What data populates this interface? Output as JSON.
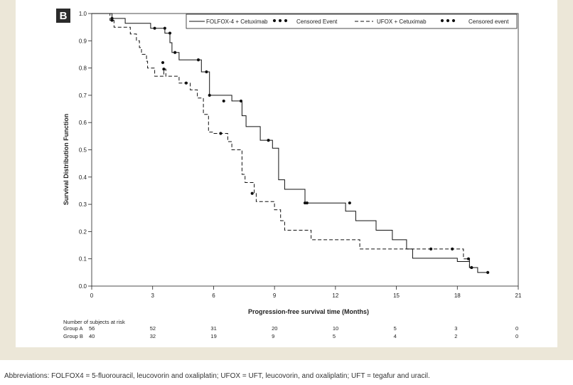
{
  "panel_label": "B",
  "chart_data": {
    "type": "line",
    "xlabel": "Progression-free survival time (Months)",
    "ylabel": "Survival Distribution Function",
    "xlim": [
      0,
      21
    ],
    "ylim": [
      0,
      1.0
    ],
    "xticks": [
      0,
      3,
      6,
      9,
      12,
      15,
      18,
      21
    ],
    "yticks": [
      0.0,
      0.1,
      0.2,
      0.3,
      0.4,
      0.5,
      0.6,
      0.7,
      0.8,
      0.9,
      1.0
    ],
    "ytick_labels": [
      "0.0",
      "0.1",
      "0.2",
      "0.3",
      "0.4",
      "0.5",
      "0.6",
      "0.7",
      "0.8",
      "0.9",
      "1.0"
    ],
    "legend_position": "top-right",
    "legend": [
      {
        "label": "FOLFOX-4 + Cetuximab",
        "style": "solid"
      },
      {
        "label": "Censored Event",
        "style": "dots"
      },
      {
        "label": "UFOX + Cetuximab",
        "style": "dashed"
      },
      {
        "label": "Censored event",
        "style": "dots"
      }
    ],
    "series": [
      {
        "style": "solid",
        "steps": [
          [
            0,
            1.0
          ],
          [
            1.0,
            1.0
          ],
          [
            1.0,
            0.982
          ],
          [
            1.65,
            0.982
          ],
          [
            1.65,
            0.964
          ],
          [
            2.9,
            0.964
          ],
          [
            2.9,
            0.946
          ],
          [
            3.6,
            0.946
          ],
          [
            3.6,
            0.928
          ],
          [
            3.85,
            0.928
          ],
          [
            3.85,
            0.893
          ],
          [
            3.95,
            0.893
          ],
          [
            3.95,
            0.857
          ],
          [
            4.3,
            0.857
          ],
          [
            4.3,
            0.83
          ],
          [
            5.4,
            0.83
          ],
          [
            5.4,
            0.786
          ],
          [
            5.8,
            0.786
          ],
          [
            5.8,
            0.7
          ],
          [
            6.9,
            0.7
          ],
          [
            6.9,
            0.679
          ],
          [
            7.4,
            0.679
          ],
          [
            7.4,
            0.625
          ],
          [
            7.6,
            0.625
          ],
          [
            7.6,
            0.585
          ],
          [
            8.3,
            0.585
          ],
          [
            8.3,
            0.535
          ],
          [
            8.9,
            0.535
          ],
          [
            8.9,
            0.506
          ],
          [
            9.2,
            0.506
          ],
          [
            9.2,
            0.39
          ],
          [
            9.5,
            0.39
          ],
          [
            9.5,
            0.355
          ],
          [
            10.5,
            0.355
          ],
          [
            10.5,
            0.305
          ],
          [
            12.5,
            0.305
          ],
          [
            12.5,
            0.275
          ],
          [
            13.0,
            0.275
          ],
          [
            13.0,
            0.24
          ],
          [
            14.0,
            0.24
          ],
          [
            14.0,
            0.205
          ],
          [
            14.8,
            0.205
          ],
          [
            14.8,
            0.17
          ],
          [
            15.5,
            0.17
          ],
          [
            15.5,
            0.136
          ],
          [
            15.8,
            0.136
          ],
          [
            15.8,
            0.102
          ],
          [
            18.0,
            0.102
          ],
          [
            18.0,
            0.09
          ],
          [
            18.6,
            0.09
          ],
          [
            18.6,
            0.068
          ],
          [
            19.0,
            0.068
          ],
          [
            19.0,
            0.05
          ],
          [
            19.5,
            0.05
          ]
        ],
        "censored": [
          [
            1.0,
            0.982
          ],
          [
            3.1,
            0.946
          ],
          [
            3.6,
            0.946
          ],
          [
            3.85,
            0.928
          ],
          [
            4.1,
            0.857
          ],
          [
            5.25,
            0.83
          ],
          [
            5.65,
            0.786
          ],
          [
            5.8,
            0.7
          ],
          [
            6.5,
            0.679
          ],
          [
            7.35,
            0.679
          ],
          [
            8.7,
            0.535
          ],
          [
            10.5,
            0.305
          ],
          [
            10.6,
            0.305
          ],
          [
            12.7,
            0.305
          ],
          [
            18.7,
            0.068
          ],
          [
            19.5,
            0.05
          ]
        ]
      },
      {
        "style": "dashed",
        "steps": [
          [
            0,
            1.0
          ],
          [
            0.9,
            1.0
          ],
          [
            0.9,
            0.975
          ],
          [
            1.1,
            0.975
          ],
          [
            1.1,
            0.95
          ],
          [
            1.9,
            0.95
          ],
          [
            1.9,
            0.925
          ],
          [
            2.2,
            0.925
          ],
          [
            2.2,
            0.9
          ],
          [
            2.35,
            0.9
          ],
          [
            2.35,
            0.875
          ],
          [
            2.45,
            0.875
          ],
          [
            2.45,
            0.85
          ],
          [
            2.7,
            0.85
          ],
          [
            2.7,
            0.825
          ],
          [
            2.75,
            0.825
          ],
          [
            2.75,
            0.8
          ],
          [
            3.1,
            0.8
          ],
          [
            3.1,
            0.77
          ],
          [
            3.55,
            0.77
          ],
          [
            3.55,
            0.796
          ],
          [
            3.65,
            0.796
          ],
          [
            3.65,
            0.77
          ],
          [
            4.3,
            0.77
          ],
          [
            4.3,
            0.745
          ],
          [
            4.85,
            0.745
          ],
          [
            4.85,
            0.72
          ],
          [
            5.2,
            0.72
          ],
          [
            5.2,
            0.69
          ],
          [
            5.5,
            0.69
          ],
          [
            5.5,
            0.63
          ],
          [
            5.75,
            0.63
          ],
          [
            5.75,
            0.565
          ],
          [
            6.0,
            0.565
          ],
          [
            6.0,
            0.56
          ],
          [
            6.7,
            0.56
          ],
          [
            6.7,
            0.53
          ],
          [
            6.9,
            0.53
          ],
          [
            6.9,
            0.5
          ],
          [
            7.4,
            0.5
          ],
          [
            7.4,
            0.41
          ],
          [
            7.55,
            0.41
          ],
          [
            7.55,
            0.38
          ],
          [
            8.0,
            0.38
          ],
          [
            8.0,
            0.34
          ],
          [
            8.1,
            0.34
          ],
          [
            8.1,
            0.31
          ],
          [
            9.0,
            0.31
          ],
          [
            9.0,
            0.28
          ],
          [
            9.3,
            0.28
          ],
          [
            9.3,
            0.24
          ],
          [
            9.5,
            0.24
          ],
          [
            9.5,
            0.205
          ],
          [
            10.8,
            0.205
          ],
          [
            10.8,
            0.17
          ],
          [
            12.0,
            0.17
          ],
          [
            12.0,
            0.17
          ],
          [
            13.2,
            0.17
          ],
          [
            13.2,
            0.136
          ],
          [
            18.3,
            0.136
          ],
          [
            18.3,
            0.1
          ],
          [
            18.6,
            0.1
          ],
          [
            18.6,
            0.068
          ],
          [
            18.7,
            0.068
          ]
        ],
        "censored": [
          [
            1.0,
            0.975
          ],
          [
            3.5,
            0.82
          ],
          [
            3.55,
            0.796
          ],
          [
            4.65,
            0.745
          ],
          [
            6.35,
            0.56
          ],
          [
            7.9,
            0.34
          ],
          [
            16.7,
            0.136
          ],
          [
            17.75,
            0.136
          ],
          [
            18.55,
            0.1
          ],
          [
            18.7,
            0.068
          ]
        ]
      }
    ]
  },
  "risk_table": {
    "title": "Number of subjects at risk",
    "groups": [
      {
        "label": "Group A",
        "counts": [
          "56",
          "52",
          "31",
          "20",
          "10",
          "5",
          "3",
          "0"
        ]
      },
      {
        "label": "Group B",
        "counts": [
          "40",
          "32",
          "19",
          "9",
          "5",
          "4",
          "2",
          "0"
        ]
      }
    ]
  },
  "footnote": "Abbreviations: FOLFOX4 = 5-fluorouracil, leucovorin and oxaliplatin; UFOX = UFT, leucovorin, and oxaliplatin; UFT = tegafur and uracil."
}
